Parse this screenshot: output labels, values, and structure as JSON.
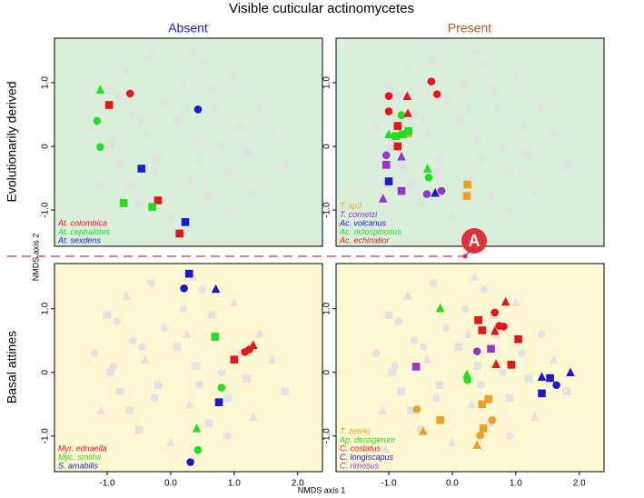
{
  "figure": {
    "title": "Visible cuticular actinomycetes",
    "columns": [
      "Absent",
      "Present"
    ],
    "column_colors": [
      "#1a1acc",
      "#b5561c"
    ],
    "rows": [
      "Evolutionarily derived",
      "Basal attines"
    ],
    "xlabel": "NMDS axis 1",
    "ylabel": "NMDS axis 2",
    "annotation": "A",
    "annotation_color": "#e0303a",
    "background_points": {
      "color": "#e2e2e2",
      "x": [
        -1.2,
        -1.1,
        -1.0,
        -0.9,
        -0.8,
        -0.7,
        -0.6,
        -0.5,
        -0.4,
        -0.3,
        -0.2,
        -0.1,
        0.0,
        0.1,
        0.2,
        0.3,
        0.4,
        0.5,
        0.6,
        0.7,
        0.8,
        0.9,
        1.0,
        1.1,
        1.2,
        1.4,
        1.6,
        1.8,
        -1.05,
        -0.85,
        -0.65,
        -0.45,
        0.25,
        0.45,
        0.65,
        1.3,
        -0.95,
        -0.25,
        0.35,
        0.9
      ],
      "y": [
        0.3,
        -0.6,
        0.9,
        0.1,
        -0.3,
        1.2,
        0.5,
        -0.9,
        0.2,
        1.4,
        -0.2,
        0.7,
        -1.1,
        0.4,
        1.0,
        -0.5,
        0.1,
        1.3,
        -0.8,
        0.6,
        0.0,
        -0.4,
        1.1,
        0.3,
        -0.1,
        0.6,
        0.2,
        -0.3,
        -1.2,
        0.8,
        -0.6,
        0.4,
        0.6,
        -0.2,
        0.9,
        -0.7,
        0.0,
        -0.4,
        1.5,
        -1.0
      ],
      "markers": [
        "circle",
        "triangle",
        "square",
        "circle",
        "square",
        "triangle",
        "circle",
        "square",
        "triangle",
        "circle",
        "square",
        "circle",
        "triangle",
        "square",
        "circle",
        "triangle",
        "square",
        "circle",
        "square",
        "triangle",
        "circle",
        "square",
        "triangle",
        "circle",
        "square",
        "circle",
        "triangle",
        "square",
        "triangle",
        "circle",
        "square",
        "circle",
        "triangle",
        "circle",
        "square",
        "triangle",
        "square",
        "circle",
        "triangle",
        "circle"
      ]
    }
  },
  "chart_data": [
    {
      "type": "scatter",
      "background": "#d9eedb",
      "xlim": [
        -1.83,
        2.39
      ],
      "ylim": [
        -1.57,
        1.7
      ],
      "yticks": [
        {
          "value": -1,
          "label": "-1.0"
        },
        0,
        {
          "value": 1,
          "label": "1.0"
        }
      ],
      "series": [
        {
          "name": "At. colombica",
          "color": "#e8141c",
          "x": [
            -0.64,
            -0.97,
            -0.2,
            0.14
          ],
          "y": [
            0.83,
            0.65,
            -0.85,
            -1.37
          ],
          "markers": [
            "circle",
            "square",
            "square",
            "square"
          ]
        },
        {
          "name": "At. cephalotes",
          "color": "#22dd22",
          "x": [
            -1.11,
            -1.16,
            -1.11,
            -0.74,
            -0.29
          ],
          "y": [
            0.89,
            0.4,
            -0.01,
            -0.89,
            -0.95
          ],
          "markers": [
            "triangle",
            "circle",
            "circle",
            "square",
            "square"
          ]
        },
        {
          "name": "At. sexdens",
          "color": "#1a1acc",
          "x": [
            0.43,
            -0.46,
            0.23
          ],
          "y": [
            0.58,
            -0.35,
            -1.19
          ],
          "markers": [
            "circle",
            "square",
            "square"
          ]
        }
      ]
    },
    {
      "type": "scatter",
      "background": "#d9eedb",
      "xlim": [
        -1.83,
        2.39
      ],
      "ylim": [
        -1.57,
        1.7
      ],
      "yticks": [
        {
          "value": -1,
          "label": "-1.0"
        },
        0,
        {
          "value": 1,
          "label": "1.0"
        }
      ],
      "series": [
        {
          "name": "T. sp3",
          "color": "#f0a020",
          "x": [
            -0.7,
            0.24,
            0.23
          ],
          "y": [
            0.2,
            -0.6,
            -0.78
          ],
          "markers": [
            "square",
            "square",
            "square"
          ]
        },
        {
          "name": "T. cornetzi",
          "color": "#9933cc",
          "x": [
            -1.04,
            -1.04,
            -0.8,
            -1.09,
            -0.8,
            -0.4,
            -0.17
          ],
          "y": [
            -0.14,
            -0.29,
            -0.7,
            -0.82,
            -0.16,
            -0.75,
            -0.7
          ],
          "markers": [
            "circle",
            "square",
            "square",
            "triangle",
            "triangle",
            "circle",
            "circle"
          ]
        },
        {
          "name": "Ac. volcanus",
          "color": "#1a1acc",
          "x": [
            -1.0,
            -0.27
          ],
          "y": [
            -0.55,
            -0.73
          ],
          "markers": [
            "square",
            "triangle"
          ]
        },
        {
          "name": "Ac. octospinosus",
          "color": "#22dd22",
          "x": [
            -1.0,
            -0.89,
            -0.78,
            -0.69,
            -0.8,
            -0.39,
            -0.37
          ],
          "y": [
            0.19,
            0.16,
            0.19,
            0.24,
            0.49,
            -0.35,
            -0.49
          ],
          "markers": [
            "triangle",
            "square",
            "square",
            "square",
            "circle",
            "triangle",
            "circle"
          ]
        },
        {
          "name": "Ac. echinatior",
          "color": "#e8141c",
          "x": [
            -1.0,
            -0.33,
            -0.24,
            -1.0,
            -0.71,
            -0.7,
            -0.86,
            -0.86
          ],
          "y": [
            0.79,
            1.02,
            0.82,
            0.55,
            0.79,
            0.52,
            0.32,
            0.0
          ],
          "markers": [
            "circle",
            "circle",
            "circle",
            "circle",
            "triangle",
            "triangle",
            "square",
            "square"
          ]
        }
      ]
    },
    {
      "type": "scatter",
      "background": "#fdf8d2",
      "xlim": [
        -1.83,
        2.39
      ],
      "ylim": [
        -1.56,
        1.71
      ],
      "xticks": [
        {
          "value": -1,
          "label": "-1.0"
        },
        {
          "value": 0,
          "label": "0.0"
        },
        {
          "value": 1,
          "label": "1.0"
        },
        {
          "value": 2,
          "label": "2.0"
        }
      ],
      "yticks": [
        {
          "value": -1,
          "label": "-1.0"
        },
        0,
        {
          "value": 1,
          "label": "1.0"
        }
      ],
      "series": [
        {
          "name": "Myr. ednaella",
          "color": "#e8141c",
          "x": [
            1.0,
            1.17,
            1.24,
            1.3
          ],
          "y": [
            0.2,
            0.32,
            0.36,
            0.43
          ],
          "markers": [
            "square",
            "circle",
            "circle",
            "triangle"
          ]
        },
        {
          "name": "Myc. smithii",
          "color": "#22dd22",
          "x": [
            0.7,
            0.8,
            0.43,
            0.41
          ],
          "y": [
            0.56,
            -0.24,
            -1.22,
            -0.88
          ],
          "markers": [
            "square",
            "circle",
            "circle",
            "triangle"
          ]
        },
        {
          "name": "S. amabilis",
          "color": "#1a1acc",
          "x": [
            0.29,
            0.21,
            0.71,
            0.76,
            0.31
          ],
          "y": [
            1.55,
            1.32,
            1.31,
            -0.47,
            -1.41
          ],
          "markers": [
            "square",
            "circle",
            "triangle",
            "square",
            "circle"
          ]
        }
      ]
    },
    {
      "type": "scatter",
      "background": "#fdf8d2",
      "xlim": [
        -1.83,
        2.39
      ],
      "ylim": [
        -1.56,
        1.71
      ],
      "xticks": [
        {
          "value": -1,
          "label": "-1.0"
        },
        {
          "value": 0,
          "label": "0.0"
        },
        {
          "value": 1,
          "label": "1.0"
        },
        {
          "value": 2,
          "label": "2.0"
        }
      ],
      "yticks": [
        {
          "value": -1,
          "label": "-1.0"
        },
        0,
        {
          "value": 1,
          "label": "1.0"
        }
      ],
      "series": [
        {
          "name": "T. zeteki",
          "color": "#f0a020",
          "x": [
            -0.56,
            -0.19,
            -0.46,
            0.57,
            0.47,
            0.39,
            0.44,
            0.49,
            0.63
          ],
          "y": [
            -0.58,
            -0.75,
            -0.92,
            -0.42,
            -0.5,
            -1.14,
            -0.99,
            -0.88,
            -0.75
          ],
          "markers": [
            "circle",
            "square",
            "triangle",
            "square",
            "square",
            "triangle",
            "circle",
            "square",
            "circle"
          ]
        },
        {
          "name": "Ap. dentigerum",
          "color": "#22dd22",
          "x": [
            -0.19,
            0.23,
            0.24
          ],
          "y": [
            1.01,
            -0.03,
            -0.12
          ],
          "markers": [
            "triangle",
            "triangle",
            "circle"
          ]
        },
        {
          "name": "C. costatus",
          "color": "#e8141c",
          "x": [
            0.41,
            0.47,
            1.04,
            0.93,
            0.67,
            0.74,
            0.81,
            0.84,
            0.67,
            0.69
          ],
          "y": [
            0.82,
            0.66,
            0.52,
            0.12,
            0.94,
            0.73,
            0.72,
            1.11,
            0.65,
            0.13
          ],
          "markers": [
            "square",
            "square",
            "square",
            "square",
            "circle",
            "circle",
            "circle",
            "triangle",
            "triangle",
            "triangle"
          ]
        },
        {
          "name": "C. longiscapus",
          "color": "#1a1acc",
          "x": [
            1.41,
            1.86,
            1.54,
            1.41,
            1.64
          ],
          "y": [
            -0.07,
            0.0,
            -0.09,
            -0.33,
            -0.2
          ],
          "markers": [
            "triangle",
            "triangle",
            "square",
            "square",
            "circle"
          ]
        },
        {
          "name": "C. rimosus",
          "color": "#9933cc",
          "x": [
            -0.57,
            0.39,
            0.61
          ],
          "y": [
            0.09,
            0.33,
            0.37
          ],
          "markers": [
            "square",
            "circle",
            "square"
          ]
        }
      ]
    }
  ]
}
